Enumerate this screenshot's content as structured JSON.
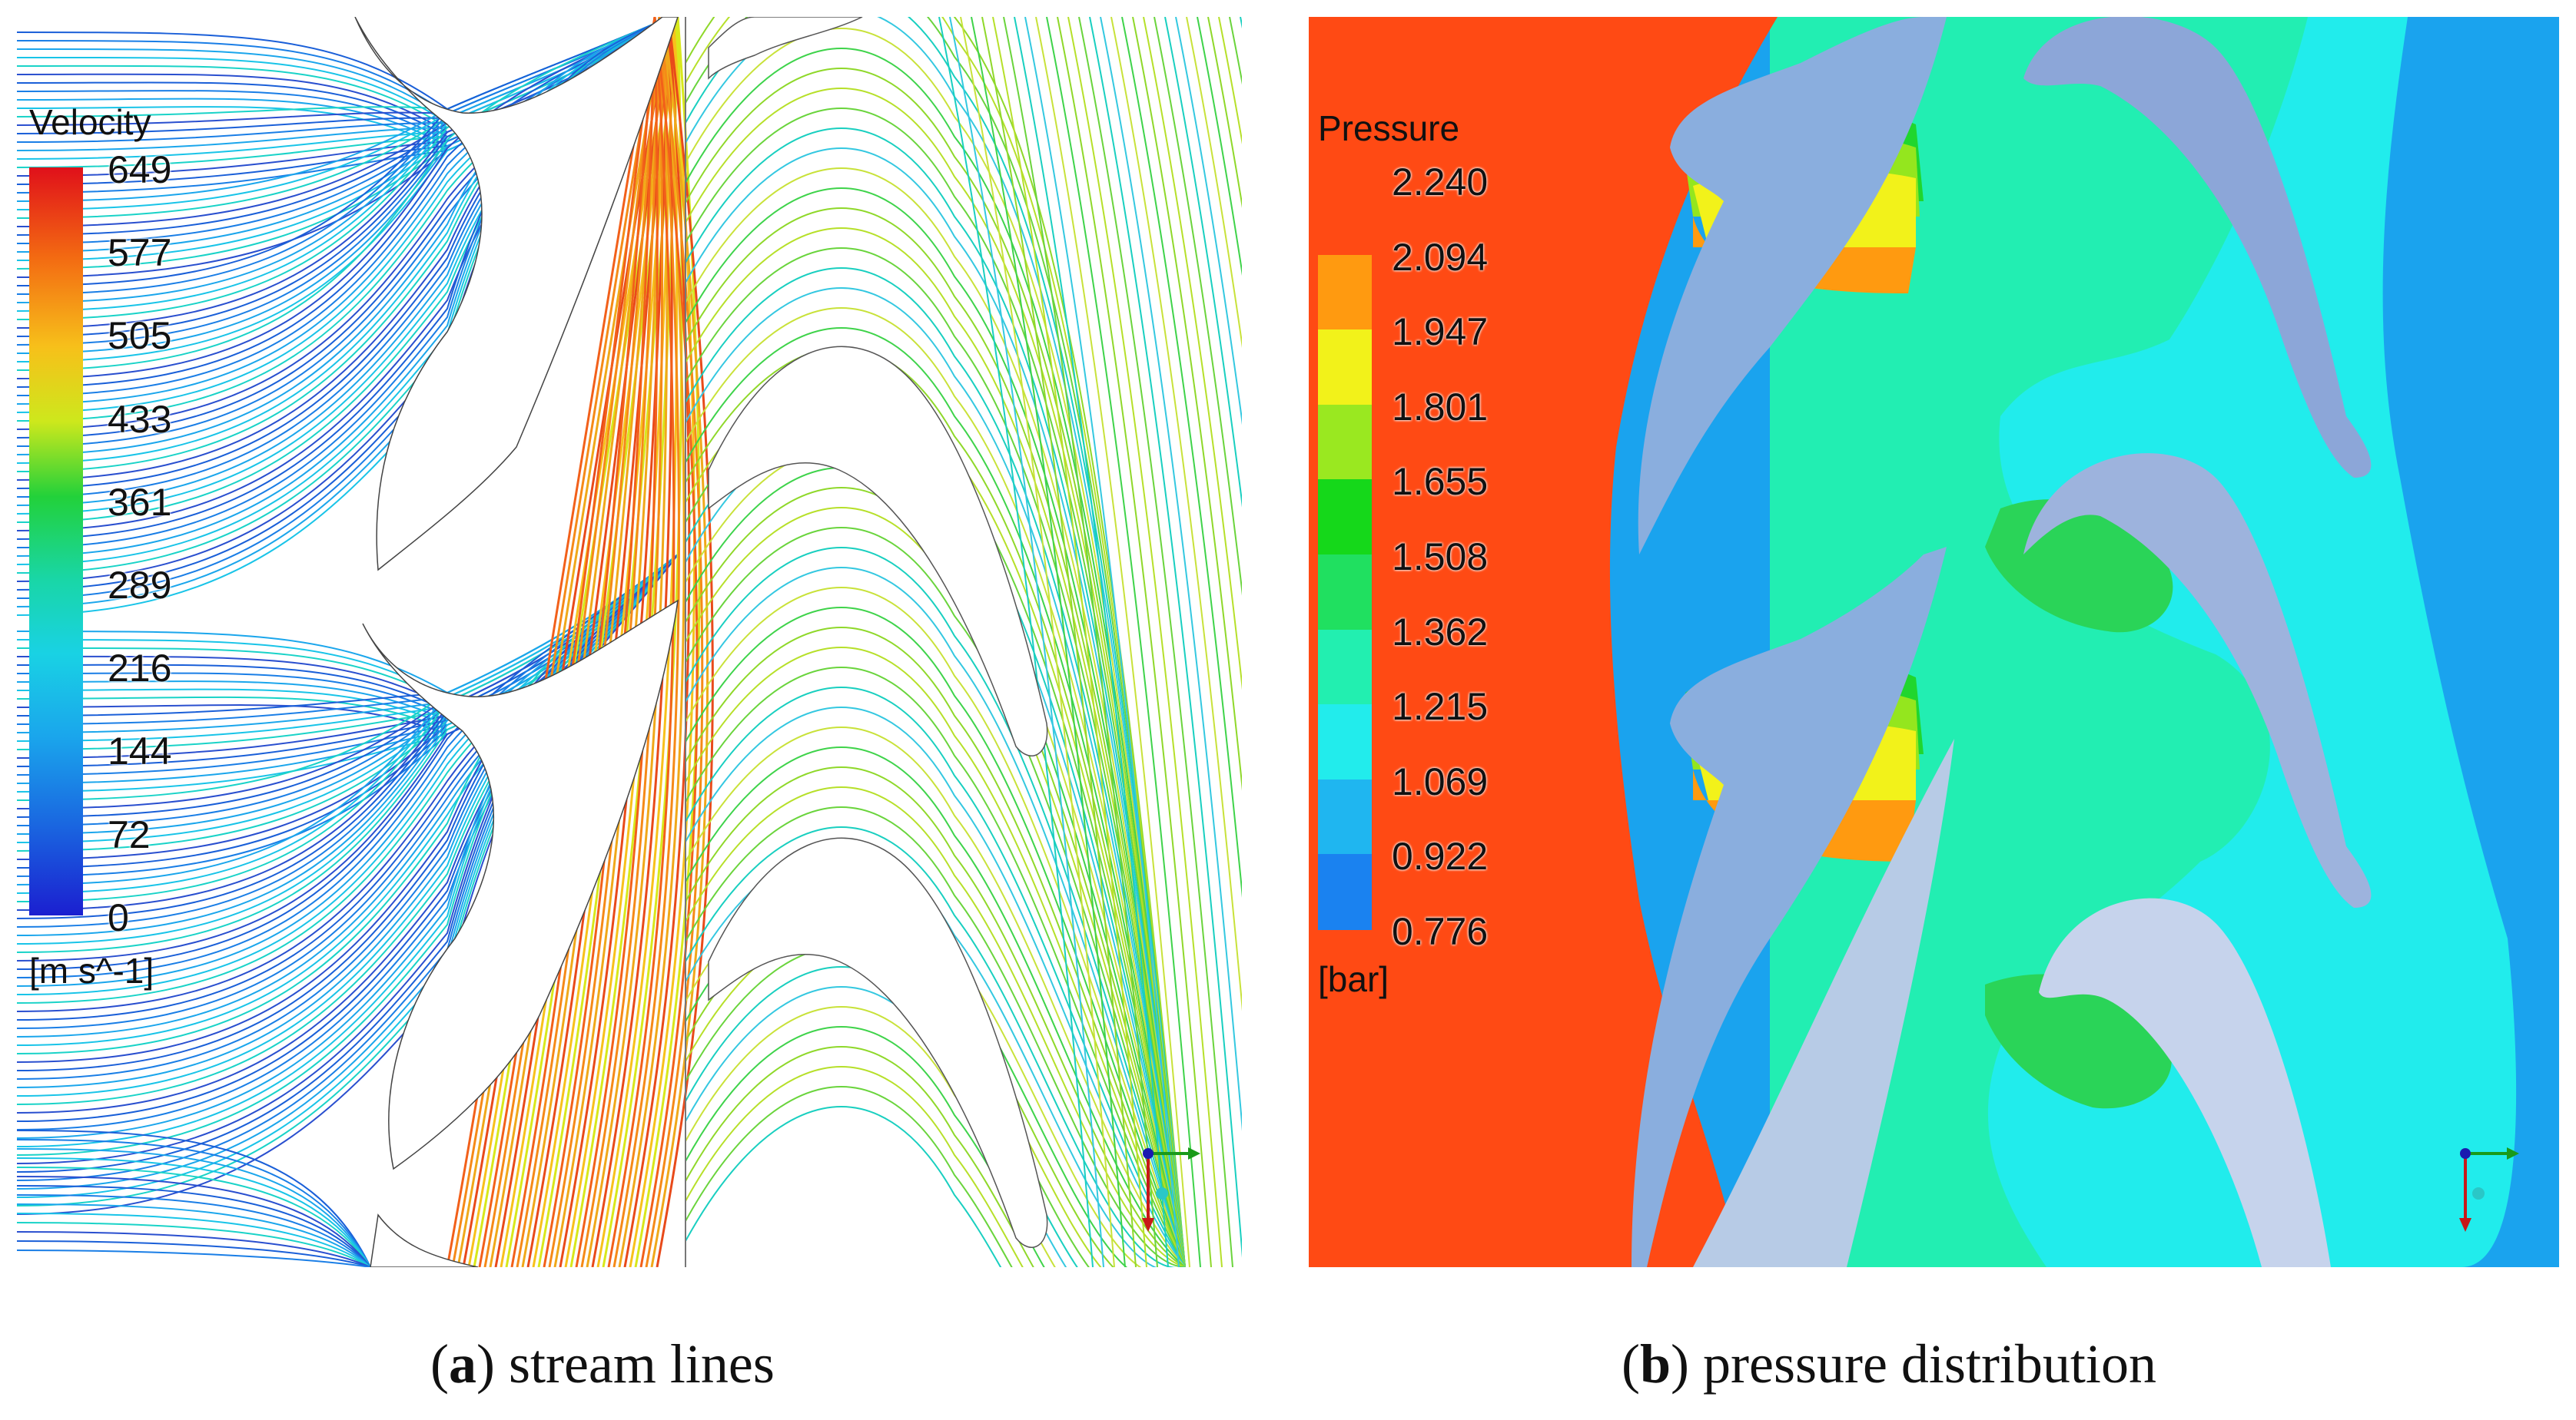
{
  "panel_a": {
    "legend_title": "Velocity",
    "legend_ticks": [
      "649",
      "577",
      "505",
      "433",
      "361",
      "289",
      "216",
      "144",
      "72",
      "0"
    ],
    "legend_unit": "[m s^-1]",
    "caption_letter": "a",
    "caption_text": "stream lines",
    "colors": [
      "#d4001c",
      "#f25a10",
      "#f7a51b",
      "#e8e81c",
      "#8fd82a",
      "#1fcf3a",
      "#19d9a0",
      "#19c6e8",
      "#1a8fe6",
      "#1b36d8"
    ]
  },
  "panel_b": {
    "legend_title": "Pressure",
    "legend_ticks": [
      "2.240",
      "2.094",
      "1.947",
      "1.801",
      "1.655",
      "1.508",
      "1.362",
      "1.215",
      "1.069",
      "0.922",
      "0.776"
    ],
    "legend_unit": "[bar]",
    "caption_letter": "b",
    "caption_text": "pressure distribution",
    "colors": [
      "#ff4a14",
      "#ff9a10",
      "#f2f21a",
      "#9ae820",
      "#15d81a",
      "#20e060",
      "#22efb0",
      "#22ecec",
      "#1fb6f0",
      "#1a82f0",
      "#1840e0"
    ]
  }
}
